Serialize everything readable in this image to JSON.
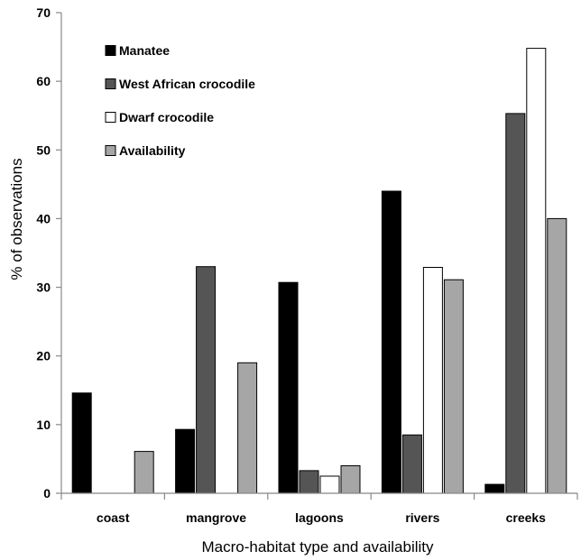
{
  "chart_data": {
    "type": "bar",
    "xlabel": "Macro-habitat type and availability",
    "ylabel": "% of observations",
    "ylim": [
      0,
      70
    ],
    "yticks": [
      0,
      10,
      20,
      30,
      40,
      50,
      60,
      70
    ],
    "grid": false,
    "legend_position": "top-left",
    "categories": [
      "coast",
      "mangrove",
      "lagoons",
      "rivers",
      "creeks"
    ],
    "series": [
      {
        "name": "Manatee",
        "color": "#000000",
        "values": [
          14.6,
          9.3,
          30.7,
          44.0,
          1.3
        ]
      },
      {
        "name": "West African crocodile",
        "color": "#555555",
        "values": [
          0,
          33.0,
          3.3,
          8.5,
          55.3
        ]
      },
      {
        "name": "Dwarf crocodile",
        "color": "#ffffff",
        "values": [
          0,
          0,
          2.5,
          32.9,
          64.8
        ]
      },
      {
        "name": "Availability",
        "color": "#a6a6a6",
        "values": [
          6.1,
          19.0,
          4.0,
          31.1,
          40.0
        ]
      }
    ]
  }
}
